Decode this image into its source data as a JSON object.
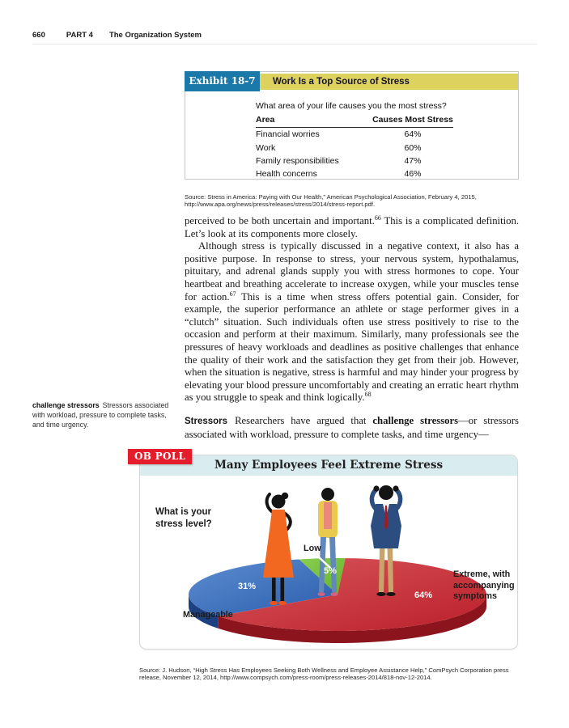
{
  "running_head": {
    "page_number": "660",
    "part_label": "PART 4",
    "part_title": "The Organization System"
  },
  "exhibit": {
    "label": "Exhibit 18-7",
    "title": "Work Is a Top Source of Stress",
    "source": "Source: Stress in America: Paying with Our Health,” American Psychological Association, February 4, 2015, http://www.apa.org/news/press/releases/stress/2014/stress-report.pdf."
  },
  "body": {
    "paragraphs": [
      {
        "indent": false,
        "segs": [
          {
            "t": "perceived to be both uncertain and important."
          },
          {
            "t": "66",
            "sup": true
          },
          {
            "t": " This is a complicated definition. Let’s look at its components more closely."
          }
        ]
      },
      {
        "indent": true,
        "segs": [
          {
            "t": "Although stress is typically discussed in a negative context, it also has a positive purpose. In response to stress, your nervous system, hypothalamus, pituitary, and adrenal glands supply you with stress hormones to cope. Your heartbeat and breathing accelerate to increase oxygen, while your muscles tense for action."
          },
          {
            "t": "67",
            "sup": true
          },
          {
            "t": " This is a time when stress offers potential gain. Consider, for example, the superior performance an athlete or stage performer gives in a “clutch” situation. Such individuals often use stress positively to rise to the occasion and perform at their maximum. Similarly, many professionals see the pressures of heavy workloads and deadlines as positive challenges that enhance the quality of their work and the satisfaction they get from their job. However, when the situation is negative, stress is harmful and may hinder your progress by elevating your blood pressure uncomfortably and creating an erratic heart rhythm as you struggle to speak and think logically."
          },
          {
            "t": "68",
            "sup": true
          }
        ]
      },
      {
        "indent": false,
        "space_before": true,
        "segs": [
          {
            "t": "Stressors",
            "lead": true
          },
          {
            "t": "Researchers have argued that "
          },
          {
            "t": "challenge stressors",
            "b": true
          },
          {
            "t": "—or stressors associated with workload, pressure to complete tasks, and time urgency—"
          }
        ]
      }
    ]
  },
  "margin_note": {
    "term": "challenge stressors",
    "definition": "Stressors associated with workload, pressure to complete tasks, and time urgency."
  },
  "ob_poll": {
    "badge": "OB POLL",
    "title": "Many Employees Feel Extreme Stress",
    "question": "What is your stress level?",
    "source": "Source: J. Hudson, “High Stress Has Employees Seeking Both Wellness and Employee Assistance Help,” ComPsych Corporation press release, November 12, 2014, http://www.compsych.com/press-room/press-releases-2014/818-nov-12-2014."
  },
  "chart_data": [
    {
      "type": "table",
      "title": "Work Is a Top Source of Stress",
      "question": "What area of your life causes you the most stress?",
      "columns": [
        "Area",
        "Causes Most Stress"
      ],
      "rows": [
        [
          "Financial worries",
          "64%"
        ],
        [
          "Work",
          "60%"
        ],
        [
          "Family responsibilities",
          "47%"
        ],
        [
          "Health concerns",
          "46%"
        ]
      ]
    },
    {
      "type": "pie",
      "style": "3d",
      "title": "Many Employees Feel Extreme Stress",
      "question": "What is your stress level?",
      "start_angle_deg": 87,
      "direction": "ccw",
      "slices": [
        {
          "label": "Low",
          "value": 5,
          "color": "#63b32a",
          "color_light": "#8bce52",
          "color_dark": "#447d17"
        },
        {
          "label": "Manageable",
          "value": 31,
          "color": "#2a5cab",
          "color_light": "#5d8ed2",
          "color_dark": "#1c4080"
        },
        {
          "label": "Extreme, with accompanying symptoms",
          "value": 64,
          "color": "#bb1f2a",
          "color_light": "#d8575b",
          "color_dark": "#8c141d"
        }
      ]
    }
  ],
  "colors": {
    "exhibit_tab": "#1b79aa",
    "exhibit_band": "#ded25e",
    "poll_badge": "#e51c2b",
    "poll_band": "#d9edf0"
  }
}
